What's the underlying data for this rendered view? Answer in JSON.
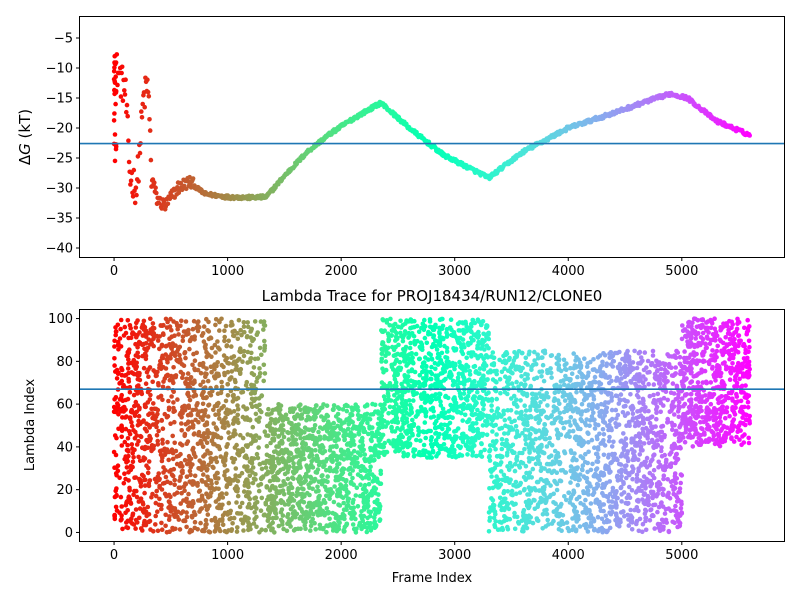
{
  "chart_data": [
    {
      "type": "scatter",
      "title": "",
      "xlabel": "",
      "ylabel": "ΔG (kT)",
      "ylabel_parts": {
        "delta": "Δ",
        "var": "G",
        "unit": " (kT)"
      },
      "xlim": [
        -300,
        5900
      ],
      "ylim": [
        -41.5,
        -1.5
      ],
      "xticks": [
        0,
        1000,
        2000,
        3000,
        4000,
        5000
      ],
      "yticks": [
        -5,
        -10,
        -15,
        -20,
        -25,
        -30,
        -35,
        -40
      ],
      "hline": -22.6,
      "hline_color": "#1f77b4",
      "colormap": "rainbow_r",
      "grid": false,
      "trend": [
        [
          0,
          -9
        ],
        [
          100,
          -14
        ],
        [
          140,
          -28
        ],
        [
          200,
          -30
        ],
        [
          260,
          -15
        ],
        [
          300,
          -13
        ],
        [
          330,
          -28
        ],
        [
          380,
          -32
        ],
        [
          450,
          -33
        ],
        [
          560,
          -30
        ],
        [
          660,
          -29
        ],
        [
          800,
          -31
        ],
        [
          1000,
          -31.5
        ],
        [
          1200,
          -31.6
        ],
        [
          1340,
          -31.5
        ],
        [
          1500,
          -28
        ],
        [
          1700,
          -24
        ],
        [
          1900,
          -21
        ],
        [
          2100,
          -18.5
        ],
        [
          2350,
          -15.8
        ],
        [
          2600,
          -20
        ],
        [
          2900,
          -24.5
        ],
        [
          3300,
          -28.3
        ],
        [
          3600,
          -24
        ],
        [
          4000,
          -20
        ],
        [
          4400,
          -17.5
        ],
        [
          4700,
          -15.5
        ],
        [
          4900,
          -14.3
        ],
        [
          5050,
          -15
        ],
        [
          5300,
          -18.8
        ],
        [
          5600,
          -21.2
        ]
      ]
    },
    {
      "type": "scatter",
      "title": "Lambda Trace for PROJ18434/RUN12/CLONE0",
      "xlabel": "Frame Index",
      "ylabel": "Lambda Index",
      "xlim": [
        -300,
        5900
      ],
      "ylim": [
        -4,
        104
      ],
      "xticks": [
        0,
        1000,
        2000,
        3000,
        4000,
        5000
      ],
      "yticks": [
        0,
        20,
        40,
        60,
        80,
        100
      ],
      "hline": 67,
      "hline_color": "#1f77b4",
      "colormap": "rainbow_r",
      "grid": false,
      "regions": [
        {
          "x": [
            0,
            10
          ],
          "low": 0,
          "high": 100
        },
        {
          "x": [
            10,
            1330
          ],
          "low": 0,
          "high": 100
        },
        {
          "x": [
            1330,
            2350
          ],
          "low": 0,
          "high": 60
        },
        {
          "x": [
            2350,
            3300
          ],
          "low": 35,
          "high": 100
        },
        {
          "x": [
            3300,
            5000
          ],
          "low": 0,
          "high": 85
        },
        {
          "x": [
            5000,
            5600
          ],
          "low": 40,
          "high": 100
        }
      ]
    }
  ]
}
